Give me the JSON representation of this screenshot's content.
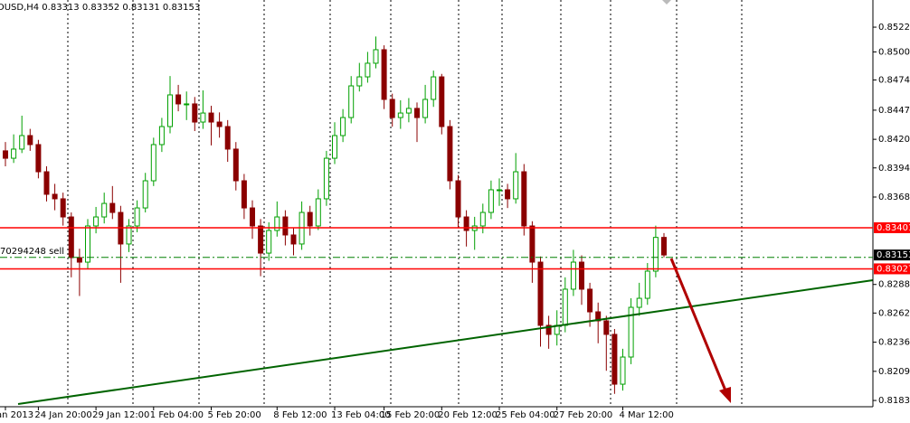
{
  "chart_data": {
    "type": "candlestick",
    "title": "DUSD,H4 0.83313 0.83352 0.83131 0.83153",
    "categories": [
      "an 2013",
      null,
      null,
      null,
      "24 Jan 20:00",
      null,
      null,
      null,
      null,
      null,
      null,
      "29 Jan 12:00",
      null,
      null,
      null,
      null,
      null,
      null,
      "1 Feb 04:00",
      null,
      null,
      null,
      null,
      null,
      null,
      "5 Feb 20:00",
      null,
      null,
      null,
      null,
      null,
      null,
      null,
      "8 Feb 12:00",
      null,
      null,
      null,
      null,
      null,
      null,
      "13 Feb 04:00",
      null,
      null,
      null,
      null,
      null,
      "15 Feb 20:00",
      null,
      null,
      null,
      null,
      null,
      null,
      "20 Feb 12:00",
      null,
      null,
      null,
      null,
      null,
      null,
      "25 Feb 04:00",
      null,
      null,
      null,
      null,
      null,
      null,
      "27 Feb 20:00",
      null,
      null,
      null,
      null,
      null,
      null,
      null,
      "4 Mar 12:00",
      null,
      null,
      null,
      null,
      null
    ],
    "open": [
      0.841,
      0.84033,
      0.84116,
      0.84239,
      0.84157,
      0.8391,
      0.83705,
      0.83664,
      0.83499,
      0.83129,
      0.83088,
      0.83417,
      0.83499,
      0.83622,
      0.8354,
      0.83253,
      0.83417,
      0.83581,
      0.83828,
      0.84157,
      0.84321,
      0.84609,
      0.84527,
      0.84527,
      0.84362,
      0.84444,
      0.84362,
      0.84321,
      0.84116,
      0.83828,
      0.83581,
      0.83417,
      0.8317,
      0.83376,
      0.83499,
      0.83335,
      0.83253,
      0.8354,
      0.83417,
      0.83664,
      0.84033,
      0.84239,
      0.84403,
      0.84691,
      0.84773,
      0.84897,
      0.8502,
      0.84568,
      0.84403,
      0.84444,
      0.84486,
      0.84403,
      0.84568,
      0.84773,
      0.84321,
      0.83828,
      0.83499,
      0.83376,
      0.83417,
      0.8354,
      0.83746,
      0.83746,
      0.83664,
      0.8391,
      0.83417,
      0.83088,
      0.82513,
      0.82431,
      0.82513,
      0.82842,
      0.83088,
      0.82842,
      0.82636,
      0.82554,
      0.82431,
      0.81978,
      0.82225,
      0.82677,
      0.82759,
      0.83006,
      0.83313
    ],
    "high": [
      0.8418,
      0.8425,
      0.8442,
      0.843,
      0.842,
      0.8396,
      0.838,
      0.8372,
      0.8354,
      0.8321,
      0.8348,
      0.8359,
      0.8372,
      0.8378,
      0.836,
      0.8348,
      0.8365,
      0.839,
      0.8422,
      0.844,
      0.8478,
      0.847,
      0.8464,
      0.8459,
      0.8465,
      0.8451,
      0.8445,
      0.8438,
      0.8418,
      0.8389,
      0.8365,
      0.8348,
      0.8345,
      0.8364,
      0.8356,
      0.834,
      0.8364,
      0.836,
      0.8375,
      0.841,
      0.8436,
      0.8448,
      0.8478,
      0.849,
      0.85,
      0.8514,
      0.8506,
      0.8462,
      0.8456,
      0.8458,
      0.8454,
      0.847,
      0.8483,
      0.848,
      0.8438,
      0.8388,
      0.8356,
      0.835,
      0.8362,
      0.8383,
      0.8385,
      0.838,
      0.8408,
      0.8398,
      0.8346,
      0.8314,
      0.826,
      0.8265,
      0.8295,
      0.832,
      0.8315,
      0.829,
      0.8272,
      0.826,
      0.8248,
      0.823,
      0.8276,
      0.829,
      0.8308,
      0.8342,
      0.83352
    ],
    "low": [
      0.8396,
      0.8399,
      0.8408,
      0.841,
      0.8385,
      0.8364,
      0.8356,
      0.8342,
      0.8295,
      0.8278,
      0.8303,
      0.8335,
      0.8344,
      0.8348,
      0.829,
      0.8318,
      0.8336,
      0.8354,
      0.8378,
      0.8409,
      0.8426,
      0.8446,
      0.8438,
      0.8428,
      0.843,
      0.8415,
      0.8422,
      0.84,
      0.8374,
      0.8348,
      0.833,
      0.8296,
      0.831,
      0.8332,
      0.8324,
      0.8315,
      0.832,
      0.8333,
      0.8338,
      0.836,
      0.8398,
      0.8418,
      0.8435,
      0.8464,
      0.8472,
      0.8485,
      0.8448,
      0.8432,
      0.843,
      0.8436,
      0.8418,
      0.8435,
      0.845,
      0.8425,
      0.8375,
      0.834,
      0.8323,
      0.832,
      0.8335,
      0.8348,
      0.836,
      0.8358,
      0.8362,
      0.8333,
      0.829,
      0.8232,
      0.823,
      0.8233,
      0.8245,
      0.8278,
      0.827,
      0.825,
      0.8235,
      0.821,
      0.8189,
      0.8192,
      0.8216,
      0.826,
      0.827,
      0.8295,
      0.83131
    ],
    "close": [
      0.84033,
      0.84116,
      0.84239,
      0.84157,
      0.8391,
      0.83705,
      0.83664,
      0.83499,
      0.83129,
      0.83088,
      0.83417,
      0.83499,
      0.83622,
      0.8354,
      0.83253,
      0.83417,
      0.83581,
      0.83828,
      0.84157,
      0.84321,
      0.84609,
      0.84527,
      0.84527,
      0.84362,
      0.84444,
      0.84362,
      0.84321,
      0.84116,
      0.83828,
      0.83581,
      0.83417,
      0.8317,
      0.83376,
      0.83499,
      0.83335,
      0.83253,
      0.8354,
      0.83417,
      0.83664,
      0.84033,
      0.84239,
      0.84403,
      0.84691,
      0.84773,
      0.84897,
      0.8502,
      0.84568,
      0.84403,
      0.84444,
      0.84486,
      0.84403,
      0.84568,
      0.84773,
      0.84321,
      0.83828,
      0.83499,
      0.83376,
      0.83417,
      0.8354,
      0.83746,
      0.83746,
      0.83664,
      0.8391,
      0.83417,
      0.83088,
      0.82513,
      0.82431,
      0.82513,
      0.82842,
      0.83088,
      0.82842,
      0.82636,
      0.82554,
      0.82431,
      0.81978,
      0.82225,
      0.82677,
      0.82759,
      0.83006,
      0.83313,
      0.83153
    ],
    "up_color": "#00a000",
    "down_color": "#8b0000",
    "ylim": [
      0.81773,
      0.85472
    ],
    "yticks": [
      0.85225,
      {
        "value": 0.85,
        "label": "0.85000"
      },
      0.84745,
      {
        "value": 0.8447,
        "label": "0.84470"
      },
      0.84205,
      0.83945,
      {
        "value": 0.8368,
        "label": "0.83680"
      },
      0.82885,
      0.82625,
      {
        "value": 0.8236,
        "label": "0.82360"
      },
      0.82095,
      {
        "value": 0.8183,
        "label": "0.81830"
      }
    ],
    "hlines": [
      {
        "value": 0.83401,
        "color": "#ff0000"
      },
      {
        "value": 0.83027,
        "color": "#ff0000"
      }
    ],
    "order": {
      "label": "70294248 sell",
      "value": 0.83131,
      "color": "#008000"
    },
    "trendline": {
      "color": "#006400",
      "values": [
        0.81798,
        0.82924
      ]
    }
  }
}
